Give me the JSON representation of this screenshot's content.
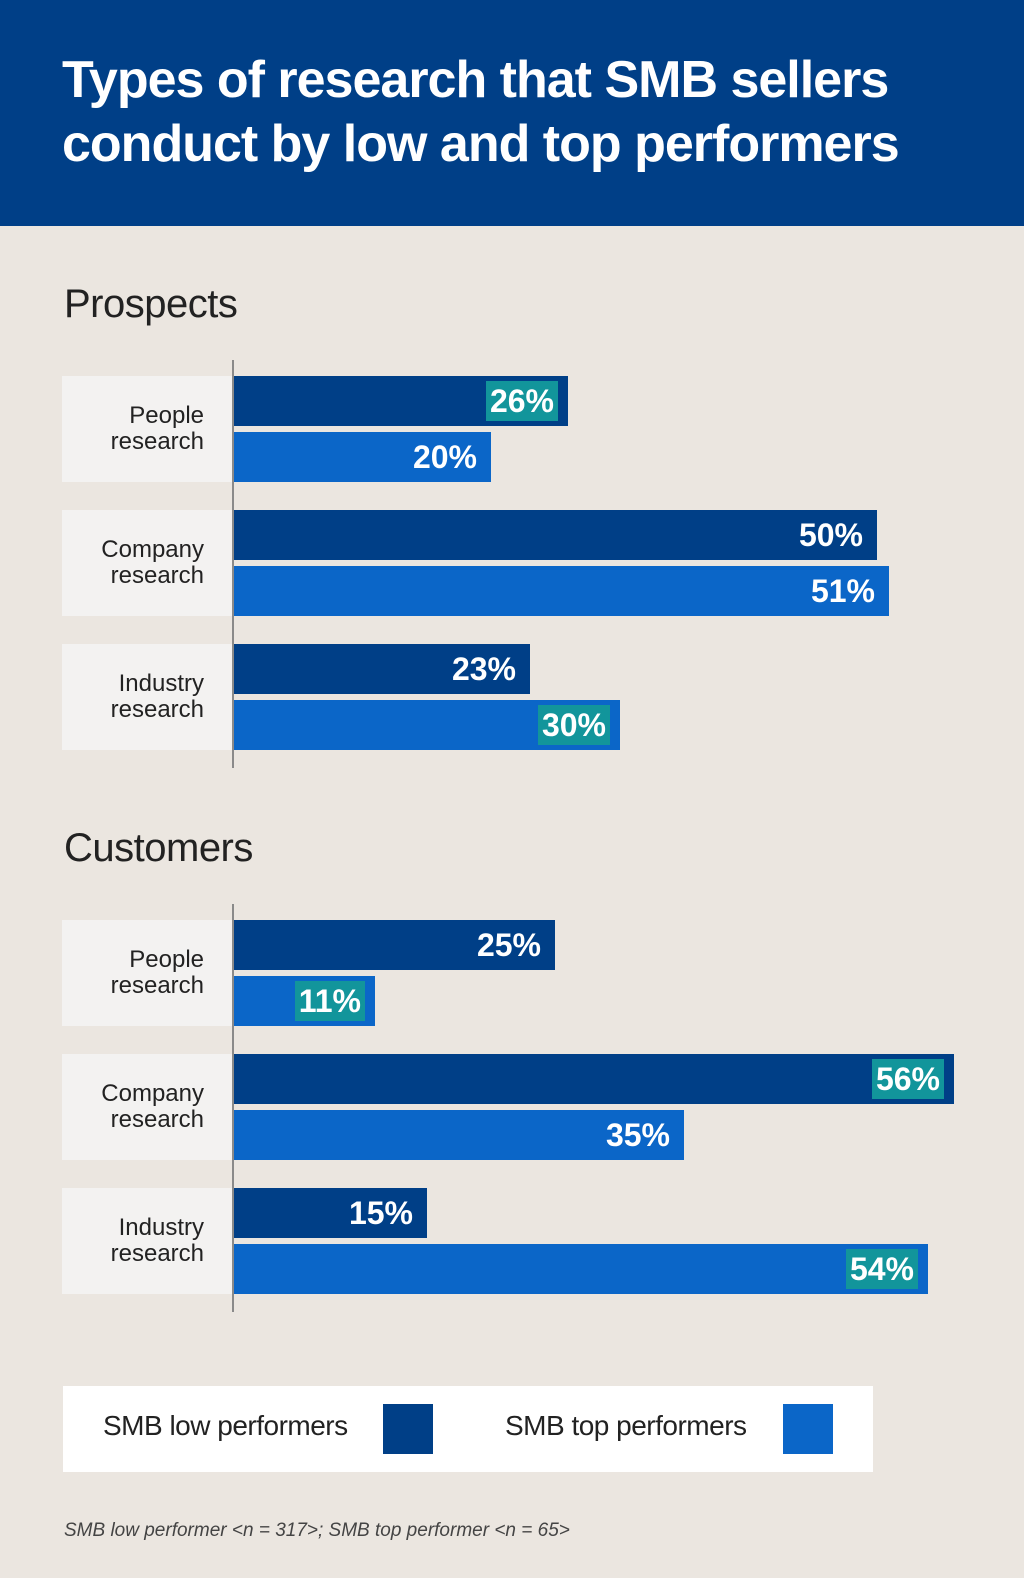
{
  "title": "Types of research that SMB sellers conduct by low and top performers",
  "colors": {
    "low": "#003f87",
    "top": "#0b66c8",
    "highlight": "#12959b",
    "background": "#ebe6e0"
  },
  "legend": {
    "low": "SMB low performers",
    "top": "SMB top performers"
  },
  "footnote": "SMB low performer <n = 317>; SMB top performer <n = 65>",
  "chart_data": [
    {
      "type": "bar",
      "orientation": "horizontal",
      "title": "Prospects",
      "categories": [
        "People\nresearch",
        "Company\nresearch",
        "Industry\nresearch"
      ],
      "series": [
        {
          "name": "SMB low performers",
          "values": [
            26,
            50,
            23
          ],
          "highlighted": [
            true,
            false,
            false
          ]
        },
        {
          "name": "SMB top performers",
          "values": [
            20,
            51,
            30
          ],
          "highlighted": [
            false,
            false,
            true
          ]
        }
      ],
      "unit": "%",
      "xlim": [
        0,
        60
      ],
      "legend": "bottom"
    },
    {
      "type": "bar",
      "orientation": "horizontal",
      "title": "Customers",
      "categories": [
        "People\nresearch",
        "Company\nresearch",
        "Industry\nresearch"
      ],
      "series": [
        {
          "name": "SMB low performers",
          "values": [
            25,
            56,
            15
          ],
          "highlighted": [
            false,
            true,
            false
          ]
        },
        {
          "name": "SMB top performers",
          "values": [
            11,
            35,
            54
          ],
          "highlighted": [
            true,
            false,
            true
          ]
        }
      ],
      "unit": "%",
      "xlim": [
        0,
        60
      ],
      "legend": "bottom"
    }
  ]
}
